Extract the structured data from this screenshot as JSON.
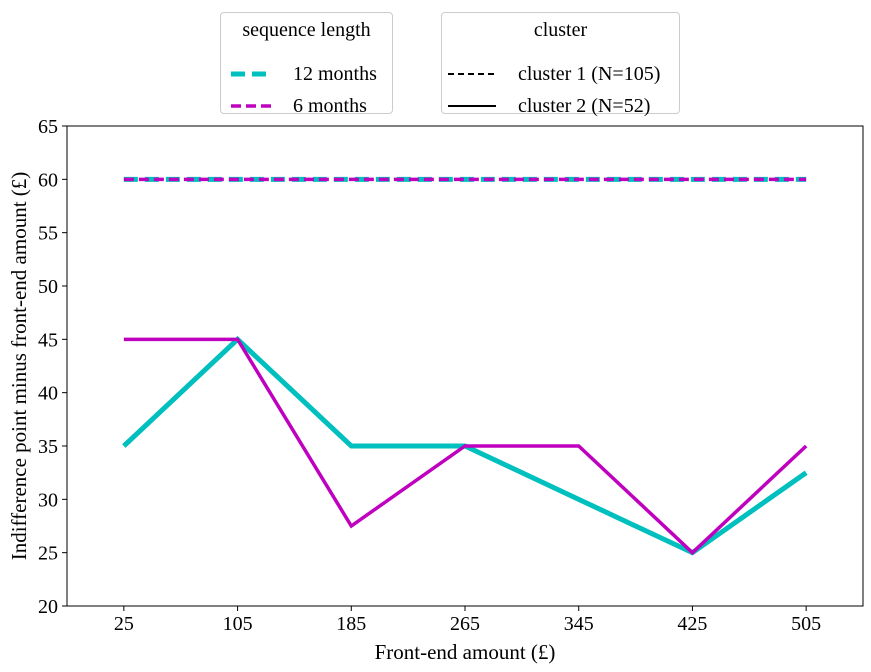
{
  "legends": {
    "length": {
      "title": "sequence length",
      "items": [
        {
          "label": "12 months",
          "color": "#00bfbf",
          "dash": true,
          "width": 5
        },
        {
          "label": "6 months",
          "color": "#bf00bf",
          "dash": true,
          "width": 3.5
        }
      ]
    },
    "cluster": {
      "title": "cluster",
      "items": [
        {
          "label": "cluster 1 (N=105)",
          "color": "#000000",
          "dash": true,
          "width": 2
        },
        {
          "label": "cluster 2 (N=52)",
          "color": "#000000",
          "dash": false,
          "width": 2
        }
      ]
    }
  },
  "chart_data": {
    "type": "line",
    "xlabel": "Front-end amount (£)",
    "ylabel": "Indifference point minus front-end amount (£)",
    "x": [
      25,
      105,
      185,
      265,
      345,
      425,
      505
    ],
    "xticks": [
      "25",
      "105",
      "185",
      "265",
      "345",
      "425",
      "505"
    ],
    "ylim": [
      20,
      65
    ],
    "yticks": [
      20,
      25,
      30,
      35,
      40,
      45,
      50,
      55,
      60,
      65
    ],
    "grid": false,
    "series": [
      {
        "sequence_length": "12 months",
        "cluster": "cluster 1 (N=105)",
        "color": "#00bfbf",
        "dash": true,
        "width": 5,
        "values": [
          60,
          60,
          60,
          60,
          60,
          60,
          60
        ]
      },
      {
        "sequence_length": "6 months",
        "cluster": "cluster 1 (N=105)",
        "color": "#bf00bf",
        "dash": true,
        "width": 3.5,
        "values": [
          60,
          60,
          60,
          60,
          60,
          60,
          60
        ]
      },
      {
        "sequence_length": "12 months",
        "cluster": "cluster 2 (N=52)",
        "color": "#00bfbf",
        "dash": false,
        "width": 5,
        "values": [
          35,
          45,
          35,
          35,
          30,
          25,
          32.5
        ]
      },
      {
        "sequence_length": "6 months",
        "cluster": "cluster 2 (N=52)",
        "color": "#bf00bf",
        "dash": false,
        "width": 3.5,
        "values": [
          45,
          45,
          27.5,
          35,
          35,
          25,
          35
        ]
      }
    ]
  }
}
